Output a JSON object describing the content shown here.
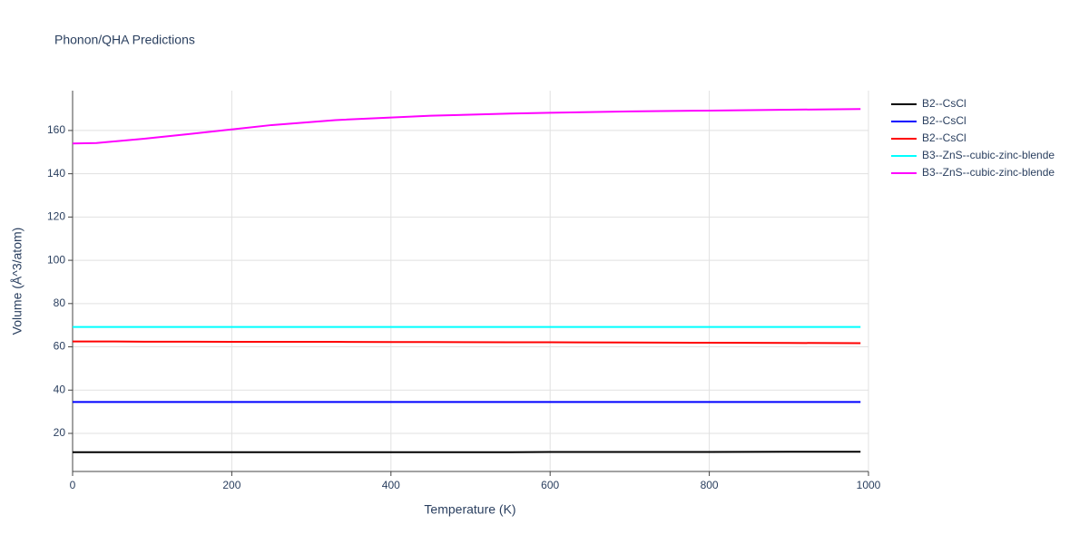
{
  "chart_data": {
    "type": "line",
    "title": "Phonon/QHA Predictions",
    "x_label": "Temperature (K)",
    "y_label": "Volume (Å^3/atom)",
    "x": [
      0,
      30,
      90,
      150,
      200,
      250,
      330,
      400,
      450,
      550,
      600,
      700,
      800,
      900,
      990
    ],
    "series": [
      {
        "name": "B2--CsCl",
        "color": "#000000",
        "values": [
          11.3,
          11.3,
          11.3,
          11.3,
          11.3,
          11.3,
          11.3,
          11.3,
          11.3,
          11.3,
          11.4,
          11.4,
          11.4,
          11.5,
          11.5
        ]
      },
      {
        "name": "B2--CsCl",
        "color": "#0000ff",
        "values": [
          34.5,
          34.5,
          34.5,
          34.5,
          34.5,
          34.5,
          34.5,
          34.5,
          34.5,
          34.5,
          34.5,
          34.5,
          34.5,
          34.5,
          34.5
        ]
      },
      {
        "name": "B2--CsCl",
        "color": "#ff0000",
        "values": [
          62.5,
          62.5,
          62.4,
          62.4,
          62.3,
          62.3,
          62.3,
          62.2,
          62.2,
          62.1,
          62.1,
          62.0,
          61.9,
          61.8,
          61.7
        ]
      },
      {
        "name": "B3--ZnS--cubic-zinc-blende",
        "color": "#00ffff",
        "values": [
          69.2,
          69.2,
          69.2,
          69.2,
          69.2,
          69.2,
          69.2,
          69.2,
          69.2,
          69.2,
          69.2,
          69.2,
          69.2,
          69.2,
          69.2
        ]
      },
      {
        "name": "B3--ZnS--cubic-zinc-blende",
        "color": "#ff00ff",
        "values": [
          154.0,
          154.2,
          156.2,
          158.5,
          160.5,
          162.5,
          164.8,
          166.0,
          166.8,
          167.8,
          168.2,
          168.8,
          169.2,
          169.6,
          169.9
        ]
      }
    ],
    "xlim": [
      0,
      1000
    ],
    "xticks": [
      0,
      200,
      400,
      600,
      800,
      1000
    ],
    "ylim": [
      2.4,
      178.4
    ],
    "yticks": [
      20,
      40,
      60,
      80,
      100,
      120,
      140,
      160
    ],
    "grid": true
  }
}
